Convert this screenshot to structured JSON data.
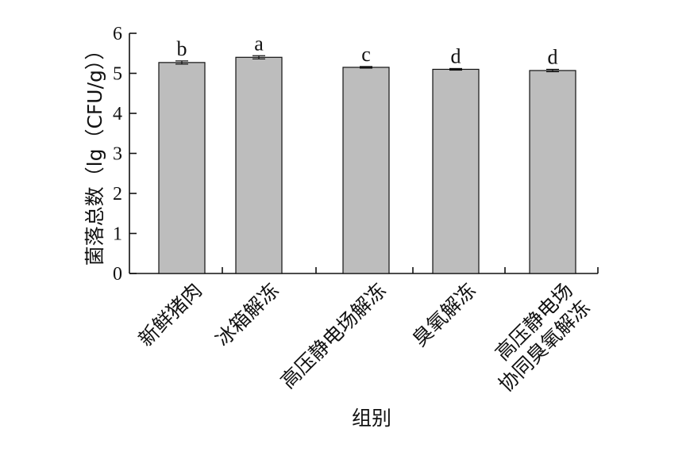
{
  "chart_data": {
    "type": "bar",
    "categories": [
      [
        "新鲜猪肉"
      ],
      [
        "冰箱解冻"
      ],
      [
        "高压静电场解冻"
      ],
      [
        "臭氧解冻"
      ],
      [
        "高压静电场",
        "协同臭氧解冻"
      ]
    ],
    "values": [
      5.27,
      5.4,
      5.15,
      5.1,
      5.07
    ],
    "errors": [
      0.04,
      0.04,
      0.02,
      0.02,
      0.03
    ],
    "significance_labels": [
      "b",
      "a",
      "c",
      "d",
      "d"
    ],
    "xlabel": "组别",
    "ylabel": "菌落总数（lg（CFU/g））",
    "ylim": [
      0,
      6
    ],
    "yticks": [
      0,
      1,
      2,
      3,
      4,
      5,
      6
    ],
    "bar_color": "#bdbdbd",
    "grid": false,
    "legend": "none"
  }
}
